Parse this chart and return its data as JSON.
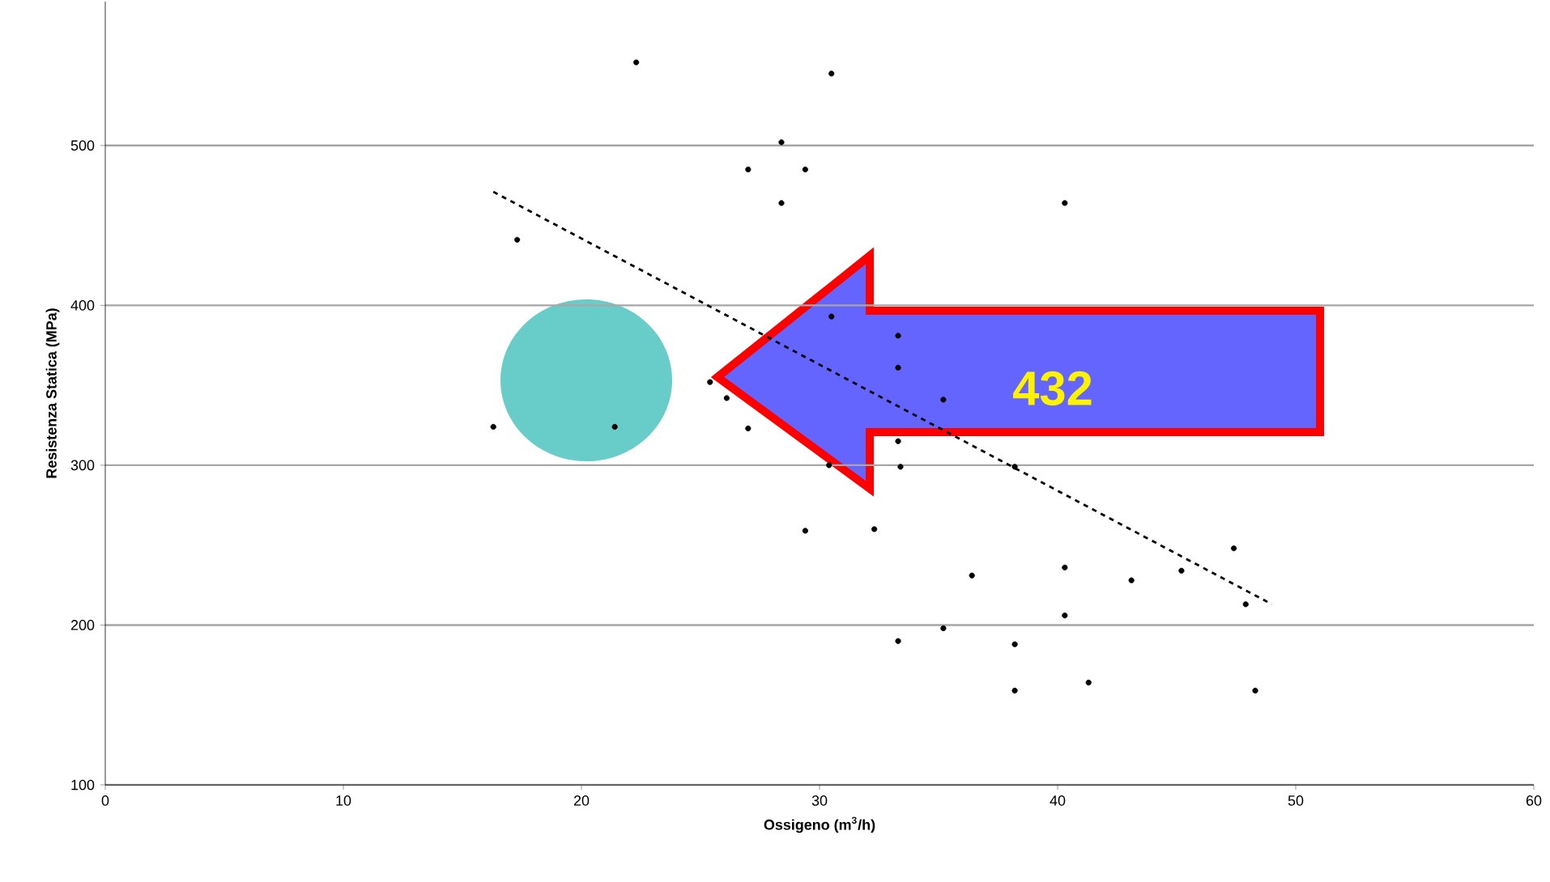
{
  "chart_data": {
    "type": "scatter",
    "xlabel": "Ossigeno (m$^{3}$/h)",
    "ylabel": "Resistenza Statica (MPa)",
    "xlim": [
      0,
      60
    ],
    "xticks": [
      0,
      10,
      20,
      30,
      40,
      50,
      60
    ],
    "ylim": [
      100,
      590
    ],
    "yticks": [
      100,
      200,
      300,
      400,
      500
    ],
    "grid": "y",
    "annotations": [
      "432"
    ],
    "series": [
      {
        "marker": "circle",
        "color": "#000000",
        "x": [
          22.3,
          30.5,
          28.4,
          27.0,
          29.4,
          28.4,
          40.3,
          17.3,
          30.5,
          33.3,
          33.3,
          25.4,
          26.1,
          35.2,
          16.3,
          21.4,
          27.0,
          33.3,
          30.4,
          33.4,
          38.2,
          29.4,
          32.3,
          36.4,
          40.3,
          43.1,
          47.4,
          45.2,
          47.9,
          40.3,
          35.2,
          33.3,
          38.2,
          38.2,
          41.3,
          48.3
        ],
        "values": [
          552,
          545,
          502,
          485,
          485,
          464,
          464,
          441,
          393,
          381,
          361,
          352,
          342,
          341,
          324,
          324,
          323,
          315,
          300,
          299,
          299,
          259,
          260,
          231,
          236,
          228,
          248,
          234,
          213,
          206,
          198,
          190,
          188,
          159,
          164,
          159
        ]
      },
      {
        "type": "line",
        "marker": "none",
        "color": "#000000",
        "line_style": "dashed",
        "x": [
          16.3,
          49.0
        ],
        "values": [
          471,
          213
        ]
      }
    ]
  }
}
